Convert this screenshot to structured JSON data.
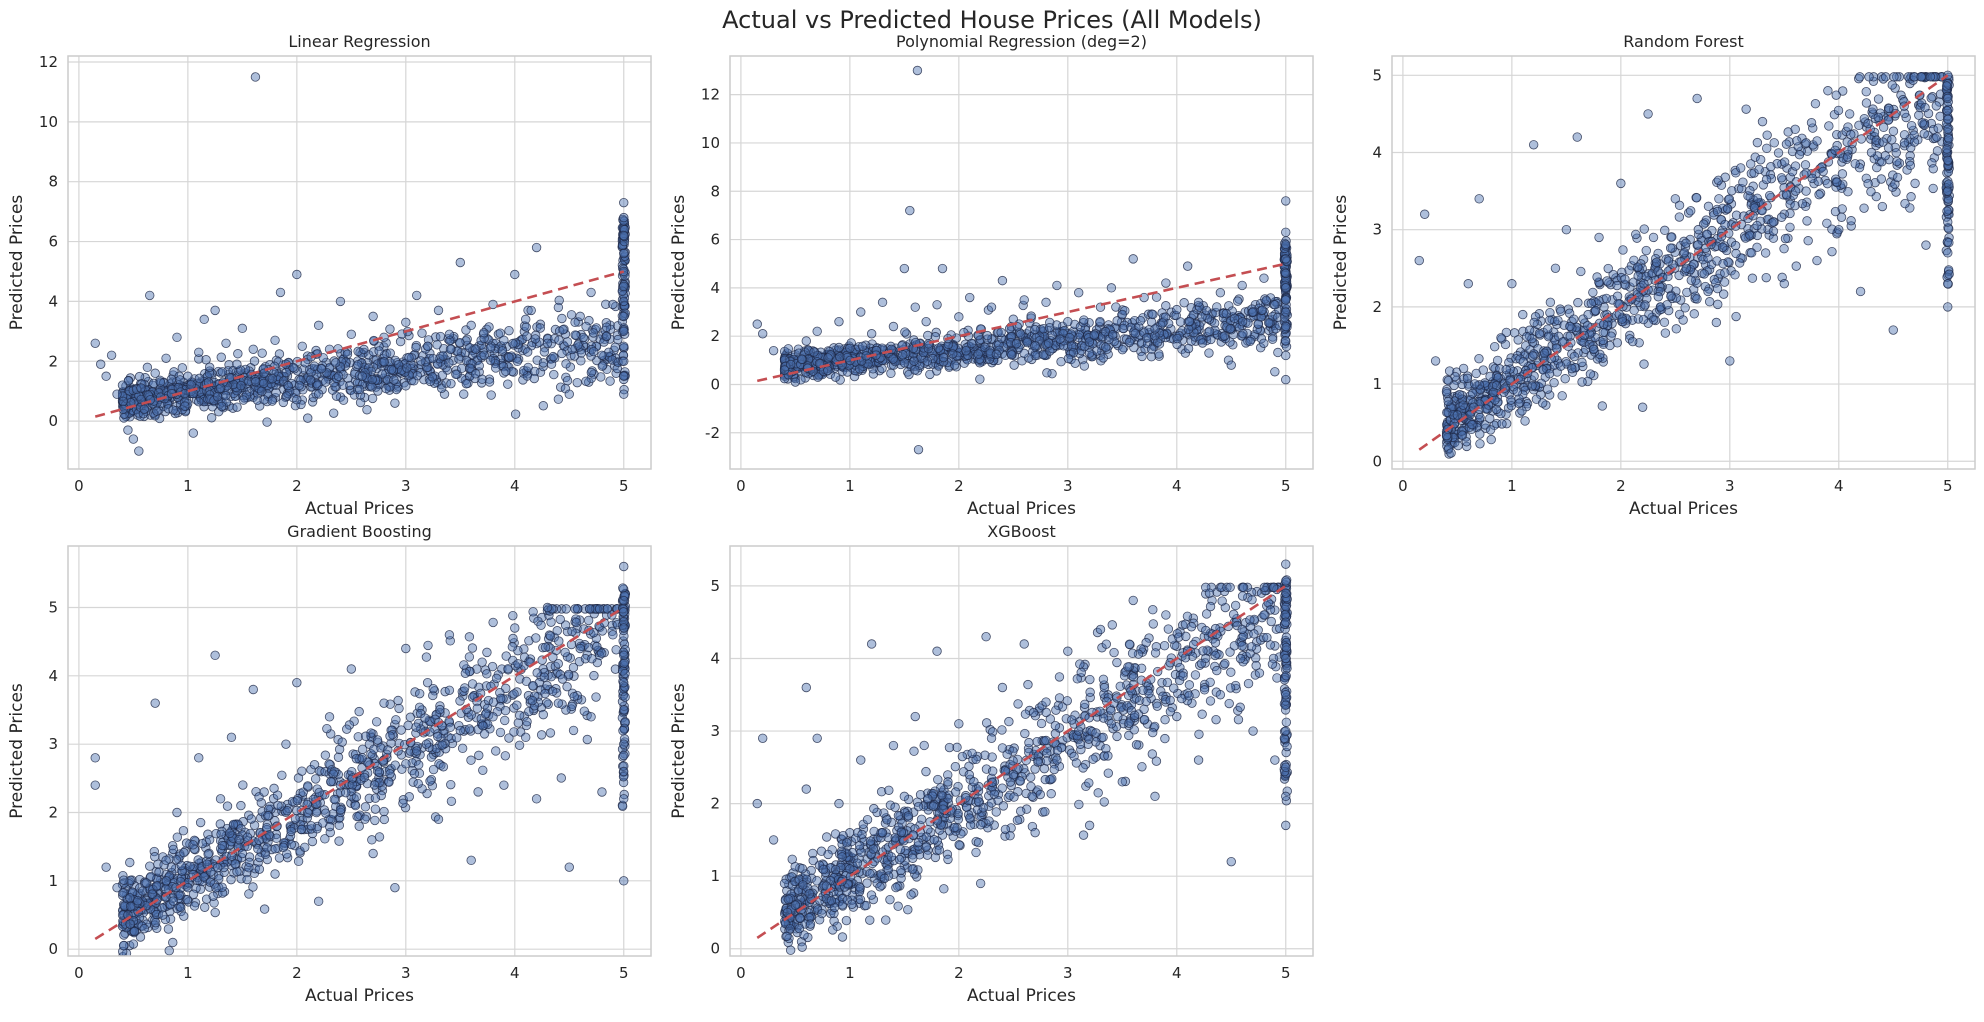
{
  "figure": {
    "title": "Actual vs Predicted House Prices (All Models)"
  },
  "colors": {
    "points": "#4c72b0",
    "point_edge": "#1e2846",
    "reference_line": "#c44e52",
    "grid": "#d6d6d6"
  },
  "chart_data": [
    {
      "type": "scatter",
      "title": "Linear Regression",
      "xlabel": "Actual Prices",
      "ylabel": "Predicted Prices",
      "xlim": [
        -0.1,
        5.25
      ],
      "ylim": [
        -1.6,
        12.2
      ],
      "xticks": [
        0,
        1,
        2,
        3,
        4,
        5
      ],
      "yticks": [
        0,
        2,
        4,
        6,
        8,
        10,
        12
      ],
      "grid": true,
      "reference_line": {
        "x": [
          0.15,
          5.0
        ],
        "y": [
          0.15,
          5.0
        ],
        "style": "dashed"
      },
      "points": [
        [
          0.15,
          2.6
        ],
        [
          0.2,
          1.9
        ],
        [
          0.25,
          1.5
        ],
        [
          0.3,
          2.2
        ],
        [
          0.35,
          0.9
        ],
        [
          0.4,
          1.2
        ],
        [
          0.45,
          -0.3
        ],
        [
          0.5,
          -0.6
        ],
        [
          0.55,
          -1.0
        ],
        [
          0.6,
          0.4
        ],
        [
          0.65,
          4.2
        ],
        [
          0.7,
          1.6
        ],
        [
          0.75,
          0.8
        ],
        [
          0.8,
          2.1
        ],
        [
          0.85,
          1.4
        ],
        [
          0.9,
          2.8
        ],
        [
          1.0,
          1.5
        ],
        [
          1.05,
          -0.4
        ],
        [
          1.1,
          2.3
        ],
        [
          1.15,
          3.4
        ],
        [
          1.2,
          1.8
        ],
        [
          1.25,
          3.7
        ],
        [
          1.3,
          1.1
        ],
        [
          1.35,
          2.6
        ],
        [
          1.45,
          1.9
        ],
        [
          1.5,
          3.1
        ],
        [
          1.6,
          2.4
        ],
        [
          1.62,
          11.5
        ],
        [
          1.7,
          1.6
        ],
        [
          1.8,
          2.7
        ],
        [
          1.85,
          4.3
        ],
        [
          1.9,
          1.9
        ],
        [
          2.0,
          4.9
        ],
        [
          2.05,
          2.5
        ],
        [
          2.1,
          0.1
        ],
        [
          2.2,
          3.2
        ],
        [
          2.3,
          2.4
        ],
        [
          2.4,
          4.0
        ],
        [
          2.5,
          2.9
        ],
        [
          2.6,
          1.5
        ],
        [
          2.7,
          3.5
        ],
        [
          2.8,
          2.8
        ],
        [
          2.9,
          0.6
        ],
        [
          3.0,
          3.3
        ],
        [
          3.1,
          4.2
        ],
        [
          3.2,
          2.5
        ],
        [
          3.3,
          3.7
        ],
        [
          3.4,
          2.9
        ],
        [
          3.5,
          5.3
        ],
        [
          3.6,
          3.2
        ],
        [
          3.7,
          1.4
        ],
        [
          3.8,
          3.9
        ],
        [
          3.9,
          2.7
        ],
        [
          4.0,
          4.9
        ],
        [
          4.1,
          3.4
        ],
        [
          4.2,
          5.8
        ],
        [
          4.3,
          2.6
        ],
        [
          4.4,
          3.8
        ],
        [
          4.5,
          0.9
        ],
        [
          4.6,
          3.5
        ],
        [
          4.7,
          4.3
        ],
        [
          4.8,
          2.2
        ],
        [
          4.9,
          3.9
        ],
        [
          5.0,
          7.3
        ],
        [
          5.0,
          6.8
        ],
        [
          5.0,
          6.2
        ],
        [
          5.0,
          5.6
        ],
        [
          5.0,
          5.0
        ],
        [
          5.0,
          4.5
        ],
        [
          5.0,
          4.0
        ],
        [
          5.0,
          3.5
        ],
        [
          5.0,
          3.0
        ],
        [
          5.0,
          2.5
        ],
        [
          5.0,
          2.0
        ],
        [
          5.0,
          1.5
        ],
        [
          5.0,
          0.9
        ]
      ]
    },
    {
      "type": "scatter",
      "title": "Polynomial Regression (deg=2)",
      "xlabel": "Actual Prices",
      "ylabel": "Predicted Prices",
      "xlim": [
        -0.1,
        5.25
      ],
      "ylim": [
        -3.5,
        13.6
      ],
      "xticks": [
        0,
        1,
        2,
        3,
        4,
        5
      ],
      "yticks": [
        -2,
        0,
        2,
        4,
        6,
        8,
        10,
        12
      ],
      "grid": true,
      "reference_line": {
        "x": [
          0.15,
          5.0
        ],
        "y": [
          0.15,
          5.0
        ],
        "style": "dashed"
      },
      "points": [
        [
          0.15,
          2.5
        ],
        [
          0.2,
          2.1
        ],
        [
          0.3,
          1.4
        ],
        [
          0.4,
          0.6
        ],
        [
          0.5,
          0.1
        ],
        [
          0.6,
          1.8
        ],
        [
          0.7,
          2.2
        ],
        [
          0.8,
          1.1
        ],
        [
          0.9,
          2.6
        ],
        [
          1.0,
          1.5
        ],
        [
          1.1,
          3.0
        ],
        [
          1.2,
          2.1
        ],
        [
          1.3,
          3.4
        ],
        [
          1.4,
          2.4
        ],
        [
          1.5,
          4.8
        ],
        [
          1.55,
          7.2
        ],
        [
          1.6,
          3.2
        ],
        [
          1.62,
          13.0
        ],
        [
          1.63,
          -2.7
        ],
        [
          1.7,
          2.6
        ],
        [
          1.8,
          3.3
        ],
        [
          1.85,
          4.8
        ],
        [
          1.9,
          1.9
        ],
        [
          2.0,
          2.8
        ],
        [
          2.1,
          3.6
        ],
        [
          2.2,
          2.3
        ],
        [
          2.3,
          3.2
        ],
        [
          2.4,
          4.3
        ],
        [
          2.5,
          2.7
        ],
        [
          2.6,
          3.5
        ],
        [
          2.7,
          1.6
        ],
        [
          2.8,
          3.4
        ],
        [
          2.9,
          4.1
        ],
        [
          3.0,
          2.6
        ],
        [
          3.1,
          3.8
        ],
        [
          3.2,
          1.3
        ],
        [
          3.3,
          3.2
        ],
        [
          3.4,
          4.0
        ],
        [
          3.5,
          2.9
        ],
        [
          3.6,
          5.2
        ],
        [
          3.7,
          3.6
        ],
        [
          3.8,
          2.3
        ],
        [
          3.9,
          4.2
        ],
        [
          4.0,
          3.1
        ],
        [
          4.1,
          4.9
        ],
        [
          4.2,
          3.4
        ],
        [
          4.3,
          2.2
        ],
        [
          4.4,
          3.8
        ],
        [
          4.5,
          0.8
        ],
        [
          4.6,
          4.1
        ],
        [
          4.7,
          3.0
        ],
        [
          4.8,
          4.4
        ],
        [
          4.9,
          3.3
        ],
        [
          5.0,
          7.6
        ],
        [
          5.0,
          6.3
        ],
        [
          5.0,
          5.8
        ],
        [
          5.0,
          5.2
        ],
        [
          5.0,
          4.6
        ],
        [
          5.0,
          4.0
        ],
        [
          5.0,
          3.5
        ],
        [
          5.0,
          3.0
        ],
        [
          5.0,
          2.4
        ],
        [
          5.0,
          1.8
        ],
        [
          5.0,
          1.2
        ],
        [
          5.0,
          0.2
        ]
      ]
    },
    {
      "type": "scatter",
      "title": "Random Forest",
      "xlabel": "Actual Prices",
      "ylabel": "Predicted Prices",
      "xlim": [
        -0.1,
        5.25
      ],
      "ylim": [
        -0.1,
        5.25
      ],
      "xticks": [
        0,
        1,
        2,
        3,
        4,
        5
      ],
      "yticks": [
        0,
        1,
        2,
        3,
        4,
        5
      ],
      "grid": true,
      "reference_line": {
        "x": [
          0.15,
          5.0
        ],
        "y": [
          0.15,
          5.0
        ],
        "style": "dashed"
      },
      "points": [
        [
          0.15,
          2.6
        ],
        [
          0.2,
          3.2
        ],
        [
          0.3,
          1.3
        ],
        [
          0.4,
          0.9
        ],
        [
          0.5,
          0.6
        ],
        [
          0.6,
          2.3
        ],
        [
          0.65,
          0.7
        ],
        [
          0.7,
          3.4
        ],
        [
          0.8,
          1.1
        ],
        [
          0.9,
          1.6
        ],
        [
          1.0,
          2.3
        ],
        [
          1.05,
          0.9
        ],
        [
          1.1,
          1.9
        ],
        [
          1.2,
          4.1
        ],
        [
          1.3,
          1.4
        ],
        [
          1.4,
          2.5
        ],
        [
          1.5,
          3.0
        ],
        [
          1.55,
          1.2
        ],
        [
          1.6,
          4.2
        ],
        [
          1.7,
          1.9
        ],
        [
          1.8,
          2.9
        ],
        [
          1.9,
          1.5
        ],
        [
          2.0,
          3.6
        ],
        [
          2.1,
          2.1
        ],
        [
          2.2,
          0.7
        ],
        [
          2.25,
          4.5
        ],
        [
          2.3,
          2.9
        ],
        [
          2.4,
          1.8
        ],
        [
          2.5,
          3.4
        ],
        [
          2.6,
          2.5
        ],
        [
          2.7,
          4.7
        ],
        [
          2.8,
          2.2
        ],
        [
          2.9,
          3.4
        ],
        [
          3.0,
          1.3
        ],
        [
          3.1,
          3.8
        ],
        [
          3.2,
          2.7
        ],
        [
          3.3,
          4.4
        ],
        [
          3.4,
          3.1
        ],
        [
          3.5,
          2.3
        ],
        [
          3.6,
          4.3
        ],
        [
          3.7,
          3.5
        ],
        [
          3.8,
          2.6
        ],
        [
          3.9,
          4.8
        ],
        [
          4.0,
          3.0
        ],
        [
          4.1,
          4.5
        ],
        [
          4.2,
          2.2
        ],
        [
          4.3,
          4.0
        ],
        [
          4.4,
          3.3
        ],
        [
          4.5,
          1.7
        ],
        [
          4.6,
          4.6
        ],
        [
          4.7,
          3.6
        ],
        [
          4.8,
          2.8
        ],
        [
          4.9,
          4.2
        ],
        [
          5.0,
          5.0
        ],
        [
          5.0,
          4.7
        ],
        [
          5.0,
          4.3
        ],
        [
          5.0,
          3.9
        ],
        [
          5.0,
          3.5
        ],
        [
          5.0,
          3.1
        ],
        [
          5.0,
          2.7
        ],
        [
          5.0,
          2.3
        ],
        [
          5.0,
          2.0
        ]
      ]
    },
    {
      "type": "scatter",
      "title": "Gradient Boosting",
      "xlabel": "Actual Prices",
      "ylabel": "Predicted Prices",
      "xlim": [
        -0.1,
        5.25
      ],
      "ylim": [
        -0.1,
        5.9
      ],
      "xticks": [
        0,
        1,
        2,
        3,
        4,
        5
      ],
      "yticks": [
        0,
        1,
        2,
        3,
        4,
        5
      ],
      "grid": true,
      "reference_line": {
        "x": [
          0.15,
          5.0
        ],
        "y": [
          0.15,
          5.0
        ],
        "style": "dashed"
      },
      "points": [
        [
          0.15,
          2.8
        ],
        [
          0.15,
          2.4
        ],
        [
          0.25,
          1.2
        ],
        [
          0.35,
          0.9
        ],
        [
          0.45,
          0.5
        ],
        [
          0.6,
          0.3
        ],
        [
          0.7,
          3.6
        ],
        [
          0.8,
          1.3
        ],
        [
          0.9,
          2.0
        ],
        [
          1.0,
          0.9
        ],
        [
          1.1,
          2.8
        ],
        [
          1.2,
          1.6
        ],
        [
          1.25,
          4.3
        ],
        [
          1.3,
          2.2
        ],
        [
          1.4,
          3.1
        ],
        [
          1.5,
          1.4
        ],
        [
          1.6,
          3.8
        ],
        [
          1.7,
          2.3
        ],
        [
          1.8,
          1.1
        ],
        [
          1.9,
          3.0
        ],
        [
          2.0,
          3.9
        ],
        [
          2.1,
          2.0
        ],
        [
          2.2,
          0.7
        ],
        [
          2.3,
          3.4
        ],
        [
          2.4,
          2.4
        ],
        [
          2.5,
          4.1
        ],
        [
          2.6,
          2.8
        ],
        [
          2.7,
          1.4
        ],
        [
          2.8,
          3.6
        ],
        [
          2.9,
          0.9
        ],
        [
          3.0,
          4.4
        ],
        [
          3.1,
          2.9
        ],
        [
          3.2,
          3.9
        ],
        [
          3.3,
          1.9
        ],
        [
          3.4,
          4.6
        ],
        [
          3.5,
          3.2
        ],
        [
          3.6,
          1.3
        ],
        [
          3.7,
          4.2
        ],
        [
          3.8,
          3.4
        ],
        [
          3.9,
          2.4
        ],
        [
          4.0,
          4.7
        ],
        [
          4.1,
          3.1
        ],
        [
          4.2,
          2.2
        ],
        [
          4.3,
          5.0
        ],
        [
          4.4,
          3.6
        ],
        [
          4.5,
          1.2
        ],
        [
          4.6,
          4.4
        ],
        [
          4.7,
          3.4
        ],
        [
          4.8,
          2.3
        ],
        [
          4.9,
          4.6
        ],
        [
          5.0,
          5.6
        ],
        [
          5.0,
          5.1
        ],
        [
          5.0,
          4.7
        ],
        [
          5.0,
          4.3
        ],
        [
          5.0,
          3.9
        ],
        [
          5.0,
          3.5
        ],
        [
          5.0,
          3.0
        ],
        [
          5.0,
          2.6
        ],
        [
          5.0,
          2.2
        ],
        [
          5.0,
          1.0
        ]
      ]
    },
    {
      "type": "scatter",
      "title": "XGBoost",
      "xlabel": "Actual Prices",
      "ylabel": "Predicted Prices",
      "xlim": [
        -0.1,
        5.25
      ],
      "ylim": [
        -0.1,
        5.55
      ],
      "xticks": [
        0,
        1,
        2,
        3,
        4,
        5
      ],
      "yticks": [
        0,
        1,
        2,
        3,
        4,
        5
      ],
      "grid": true,
      "reference_line": {
        "x": [
          0.15,
          5.0
        ],
        "y": [
          0.15,
          5.0
        ],
        "style": "dashed"
      },
      "points": [
        [
          0.15,
          2.0
        ],
        [
          0.2,
          2.9
        ],
        [
          0.3,
          1.5
        ],
        [
          0.4,
          0.9
        ],
        [
          0.5,
          0.6
        ],
        [
          0.6,
          2.2
        ],
        [
          0.6,
          3.6
        ],
        [
          0.7,
          2.9
        ],
        [
          0.8,
          1.3
        ],
        [
          0.9,
          2.0
        ],
        [
          1.0,
          1.1
        ],
        [
          1.1,
          2.6
        ],
        [
          1.2,
          4.2
        ],
        [
          1.3,
          1.6
        ],
        [
          1.4,
          2.8
        ],
        [
          1.5,
          2.1
        ],
        [
          1.6,
          3.2
        ],
        [
          1.7,
          1.4
        ],
        [
          1.8,
          4.1
        ],
        [
          1.9,
          2.3
        ],
        [
          2.0,
          3.1
        ],
        [
          2.1,
          1.8
        ],
        [
          2.2,
          0.9
        ],
        [
          2.25,
          4.3
        ],
        [
          2.3,
          2.9
        ],
        [
          2.4,
          3.6
        ],
        [
          2.5,
          2.4
        ],
        [
          2.6,
          4.2
        ],
        [
          2.7,
          1.6
        ],
        [
          2.8,
          3.4
        ],
        [
          2.9,
          2.6
        ],
        [
          3.0,
          4.1
        ],
        [
          3.1,
          3.0
        ],
        [
          3.2,
          1.7
        ],
        [
          3.3,
          4.4
        ],
        [
          3.4,
          3.1
        ],
        [
          3.5,
          2.3
        ],
        [
          3.6,
          4.8
        ],
        [
          3.7,
          3.3
        ],
        [
          3.8,
          2.1
        ],
        [
          3.9,
          4.6
        ],
        [
          4.0,
          3.2
        ],
        [
          4.1,
          4.1
        ],
        [
          4.2,
          2.6
        ],
        [
          4.3,
          4.9
        ],
        [
          4.4,
          3.5
        ],
        [
          4.5,
          1.2
        ],
        [
          4.6,
          4.4
        ],
        [
          4.7,
          3.0
        ],
        [
          4.8,
          4.6
        ],
        [
          4.9,
          2.6
        ],
        [
          5.0,
          5.3
        ],
        [
          5.0,
          4.9
        ],
        [
          5.0,
          4.5
        ],
        [
          5.0,
          4.0
        ],
        [
          5.0,
          3.5
        ],
        [
          5.0,
          3.0
        ],
        [
          5.0,
          2.5
        ],
        [
          5.0,
          2.1
        ],
        [
          5.0,
          1.7
        ]
      ]
    }
  ]
}
